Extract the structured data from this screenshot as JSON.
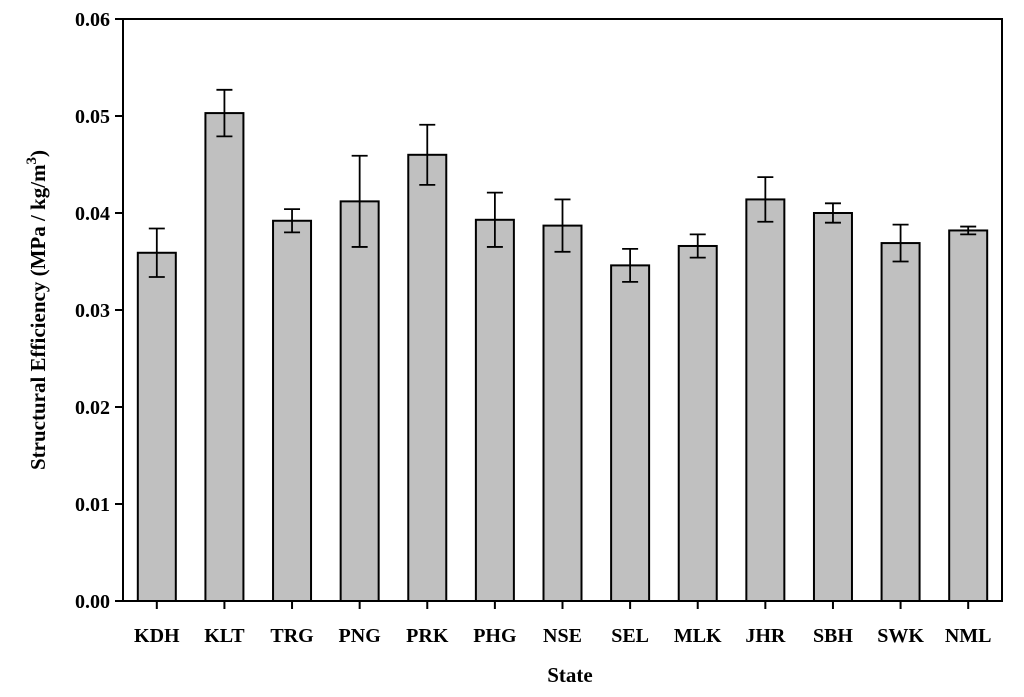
{
  "chart_data": {
    "type": "bar",
    "xlabel": "State",
    "ylabel": "Structural Efficiency (MPa / kg/m",
    "ylabel_superscript": "3",
    "ylabel_suffix": ")",
    "ylim": [
      0,
      0.06
    ],
    "yticks": [
      "0.00",
      "0.01",
      "0.02",
      "0.03",
      "0.04",
      "0.05",
      "0.06"
    ],
    "categories": [
      "KDH",
      "KLT",
      "TRG",
      "PNG",
      "PRK",
      "PHG",
      "NSE",
      "SEL",
      "MLK",
      "JHR",
      "SBH",
      "SWK",
      "NML"
    ],
    "values": [
      0.0359,
      0.0503,
      0.0392,
      0.0412,
      0.046,
      0.0393,
      0.0387,
      0.0346,
      0.0366,
      0.0414,
      0.04,
      0.0369,
      0.0382
    ],
    "errors": [
      0.0025,
      0.0024,
      0.0012,
      0.0047,
      0.0031,
      0.0028,
      0.0027,
      0.0017,
      0.0012,
      0.0023,
      0.001,
      0.0019,
      0.0004
    ],
    "grid": false,
    "bar_color": "#c0c0c0",
    "edge_color": "#000000"
  }
}
